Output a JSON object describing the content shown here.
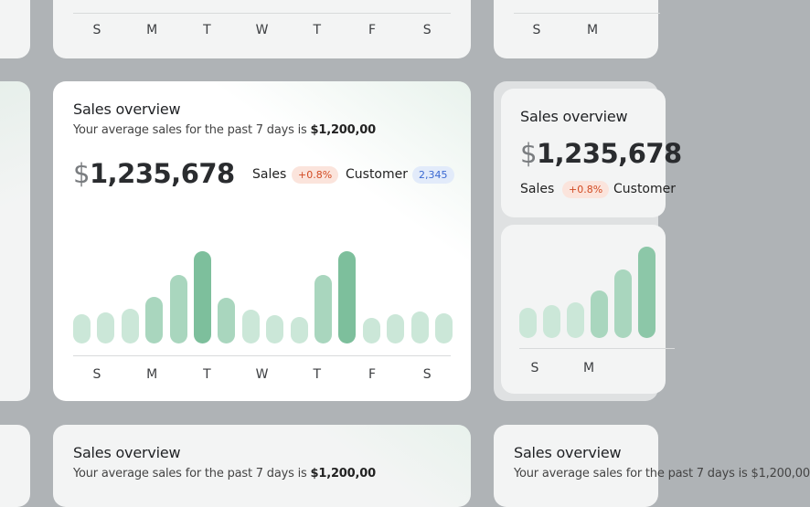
{
  "cards": {
    "main": {
      "title": "Sales overview",
      "subtitle": "Your average sales for the past 7 days is",
      "average": "$1,200,00",
      "currency": "$",
      "amount": "1,235,678",
      "metrics": [
        {
          "label": "Sales",
          "badge": "+0.8%"
        },
        {
          "label": "Customer",
          "badge": "2,345"
        }
      ]
    },
    "top_middle": {
      "day_labels": [
        "S",
        "M",
        "T",
        "W",
        "T",
        "F",
        "S"
      ]
    },
    "top_right": {
      "day_labels": [
        "S",
        "M"
      ]
    },
    "right": {
      "title": "Sales overview",
      "currency": "$",
      "amount": "1,235,678",
      "metric_label": "Sales",
      "metric_badge": "+0.8%",
      "metric2_label": "Customer"
    },
    "bottom_middle": {
      "title": "Sales overview",
      "subtitle": "Your average sales for the past 7 days is",
      "average": "$1,200,00"
    },
    "bottom_right": {
      "title": "Sales overview",
      "subtitle": "Your average sales for the past 7 days is $1,200,00"
    }
  },
  "chart_data": [
    {
      "type": "bar",
      "values": [
        32,
        34,
        38,
        51,
        75,
        101,
        50,
        37,
        31,
        29,
        75,
        101,
        28,
        32,
        35,
        33
      ],
      "colors": [
        "#cbe7d8",
        "#cbe7d8",
        "#cbe7d8",
        "#a9d6be",
        "#a9d6be",
        "#7dbf9c",
        "#a9d6be",
        "#cbe7d8",
        "#cbe7d8",
        "#cbe7d8",
        "#a9d6be",
        "#7dbf9c",
        "#cbe7d8",
        "#cbe7d8",
        "#cbe7d8",
        "#cbe7d8"
      ],
      "day_labels": [
        "S",
        "M",
        "T",
        "W",
        "T",
        "F",
        "S"
      ]
    },
    {
      "type": "bar",
      "values": [
        33,
        36,
        39,
        52,
        75,
        100
      ],
      "colors": [
        "#cbe7d8",
        "#cbe7d8",
        "#cbe7d8",
        "#a9d6be",
        "#a9d6be",
        "#8cc7a8"
      ],
      "day_labels": [
        "S",
        "M"
      ]
    }
  ]
}
